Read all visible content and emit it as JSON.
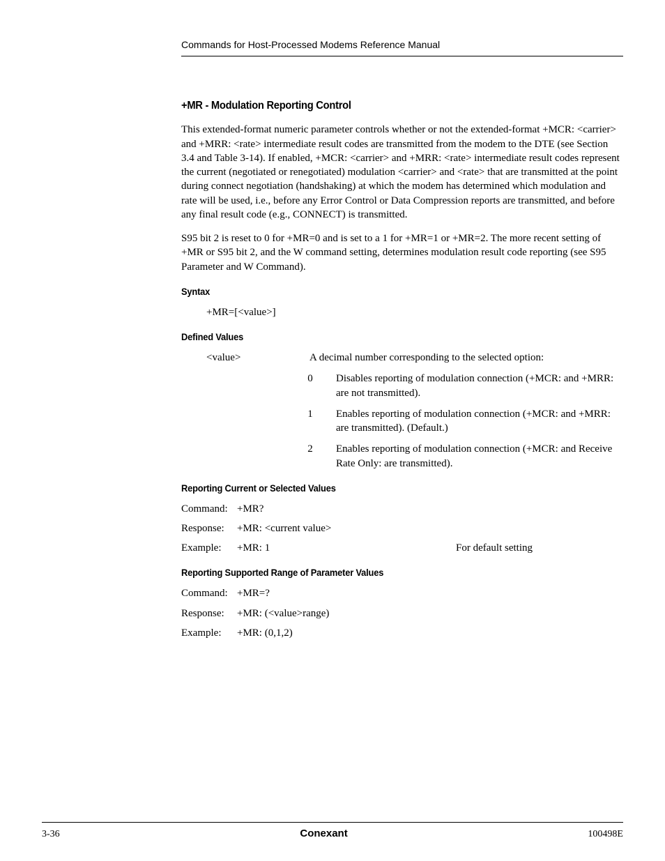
{
  "header": {
    "text": "Commands for Host-Processed Modems Reference Manual"
  },
  "section": {
    "title": "+MR - Modulation Reporting Control",
    "para1": "This extended-format numeric parameter controls whether or not the extended-format +MCR: <carrier> and +MRR: <rate> intermediate result codes are transmitted from the modem to the DTE (see Section 3.4 and  Table 3-14). If enabled, +MCR: <carrier> and +MRR: <rate> intermediate result codes represent the current (negotiated or renegotiated) modulation <carrier> and <rate> that are transmitted at the point during connect negotiation (handshaking) at which the modem has determined which modulation and rate will be used, i.e., before any Error Control or Data Compression reports are transmitted, and before any final result code (e.g., CONNECT) is transmitted.",
    "para2": "S95 bit 2 is reset to 0 for +MR=0 and is set to a 1 for +MR=1 or +MR=2. The more recent setting of +MR or S95 bit 2, and the W command setting, determines modulation result code reporting (see S95 Parameter and W Command)."
  },
  "syntax": {
    "heading": "Syntax",
    "text": "+MR=[<value>]"
  },
  "defined": {
    "heading": "Defined Values",
    "param": "<value>",
    "desc": "A decimal number corresponding to the selected option:",
    "options": [
      {
        "n": "0",
        "t": "Disables reporting of modulation connection (+MCR: and +MRR: are not transmitted)."
      },
      {
        "n": "1",
        "t": "Enables reporting of modulation connection (+MCR: and +MRR: are transmitted). (Default.)"
      },
      {
        "n": "2",
        "t": "Enables reporting of modulation connection (+MCR: and Receive Rate Only: are transmitted)."
      }
    ]
  },
  "current": {
    "heading": "Reporting Current or Selected Values",
    "rows": [
      {
        "label": "Command:",
        "value": "+MR?",
        "note": ""
      },
      {
        "label": "Response:",
        "value": "+MR: <current value>",
        "note": ""
      },
      {
        "label": "Example:",
        "value": "+MR: 1",
        "note": "For default setting"
      }
    ]
  },
  "supported": {
    "heading": "Reporting Supported Range of Parameter Values",
    "rows": [
      {
        "label": "Command:",
        "value": "+MR=?",
        "note": ""
      },
      {
        "label": "Response:",
        "value": "+MR: (<value>range)",
        "note": ""
      },
      {
        "label": "Example:",
        "value": "+MR: (0,1,2)",
        "note": ""
      }
    ]
  },
  "footer": {
    "left": "3-36",
    "center": "Conexant",
    "right": "100498E"
  }
}
